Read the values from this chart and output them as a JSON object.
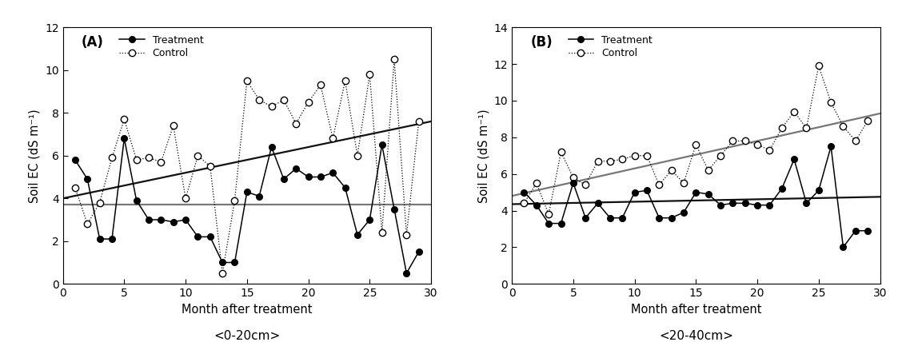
{
  "panel_A": {
    "label": "(A)",
    "subtitle": "<0-20cm>",
    "ylim": [
      0,
      12
    ],
    "yticks": [
      0,
      2,
      4,
      6,
      8,
      10,
      12
    ],
    "treatment_x": [
      1,
      2,
      3,
      4,
      5,
      6,
      7,
      8,
      9,
      10,
      11,
      12,
      13,
      14,
      15,
      16,
      17,
      18,
      19,
      20,
      21,
      22,
      23,
      24,
      25,
      26,
      27,
      28,
      29
    ],
    "treatment_y": [
      5.8,
      4.9,
      2.1,
      2.1,
      6.8,
      3.9,
      3.0,
      3.0,
      2.9,
      3.0,
      2.2,
      2.2,
      1.0,
      1.0,
      4.3,
      4.1,
      6.4,
      4.9,
      5.4,
      5.0,
      5.0,
      5.2,
      4.5,
      2.3,
      3.0,
      6.5,
      3.5,
      0.5,
      1.5
    ],
    "control_x": [
      1,
      2,
      3,
      4,
      5,
      6,
      7,
      8,
      9,
      10,
      11,
      12,
      13,
      14,
      15,
      16,
      17,
      18,
      19,
      20,
      21,
      22,
      23,
      24,
      25,
      26,
      27,
      28,
      29
    ],
    "control_y": [
      4.5,
      2.8,
      3.8,
      5.9,
      7.7,
      5.8,
      5.9,
      5.7,
      7.4,
      4.0,
      6.0,
      5.5,
      0.5,
      3.9,
      9.5,
      8.6,
      8.3,
      8.6,
      7.5,
      8.5,
      9.3,
      6.8,
      9.5,
      6.0,
      9.8,
      2.4,
      10.5,
      2.3,
      7.6
    ],
    "treat_trend_x": [
      0,
      30
    ],
    "treat_trend_y": [
      4.0,
      7.6
    ],
    "control_trend_x": [
      0,
      30
    ],
    "control_trend_y": [
      3.7,
      3.7
    ]
  },
  "panel_B": {
    "label": "(B)",
    "subtitle": "<20-40cm>",
    "ylim": [
      0,
      14
    ],
    "yticks": [
      0,
      2,
      4,
      6,
      8,
      10,
      12,
      14
    ],
    "treatment_x": [
      1,
      2,
      3,
      4,
      5,
      6,
      7,
      8,
      9,
      10,
      11,
      12,
      13,
      14,
      15,
      16,
      17,
      18,
      19,
      20,
      21,
      22,
      23,
      24,
      25,
      26,
      27,
      28,
      29
    ],
    "treatment_y": [
      5.0,
      4.3,
      3.3,
      3.3,
      5.5,
      3.6,
      4.4,
      3.6,
      3.6,
      5.0,
      5.1,
      3.6,
      3.6,
      3.9,
      5.0,
      4.9,
      4.3,
      4.4,
      4.4,
      4.3,
      4.3,
      5.2,
      6.8,
      4.4,
      5.1,
      7.5,
      2.0,
      2.9,
      2.9
    ],
    "control_x": [
      1,
      2,
      3,
      4,
      5,
      6,
      7,
      8,
      9,
      10,
      11,
      12,
      13,
      14,
      15,
      16,
      17,
      18,
      19,
      20,
      21,
      22,
      23,
      24,
      25,
      26,
      27,
      28,
      29
    ],
    "control_y": [
      4.4,
      5.5,
      3.8,
      7.2,
      5.8,
      5.4,
      6.7,
      6.7,
      6.8,
      7.0,
      7.0,
      5.4,
      6.2,
      5.5,
      7.6,
      6.2,
      7.0,
      7.8,
      7.8,
      7.6,
      7.3,
      8.5,
      9.4,
      8.5,
      11.9,
      9.9,
      8.6,
      7.8,
      8.9
    ],
    "treat_trend_x": [
      0,
      30
    ],
    "treat_trend_y": [
      4.35,
      4.75
    ],
    "control_trend_x": [
      0,
      30
    ],
    "control_trend_y": [
      4.8,
      9.3
    ]
  },
  "xlabel": "Month after treatment",
  "ylabel": "Soil EC (dS m⁻¹)",
  "treatment_label": "Treatment",
  "control_label": "Control",
  "xlim": [
    0,
    30
  ],
  "xticks": [
    0,
    5,
    10,
    15,
    20,
    25,
    30
  ],
  "fig_width": 11.23,
  "fig_height": 4.28,
  "dpi": 100
}
